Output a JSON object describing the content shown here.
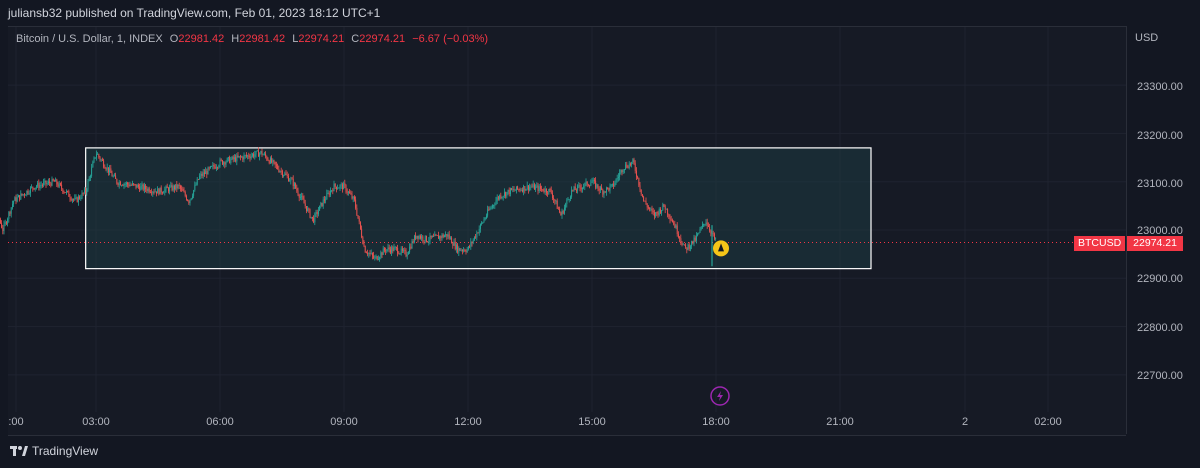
{
  "header": {
    "publisher_text": "juliansb32 published on TradingView.com, Feb 01, 2023 18:12 UTC+1"
  },
  "legend": {
    "symbol": "Bitcoin / U.S. Dollar, 1, INDEX",
    "o_label": "O",
    "o": "22981.42",
    "h_label": "H",
    "h": "22981.42",
    "l_label": "L",
    "l": "22974.21",
    "c_label": "C",
    "c": "22974.21",
    "change": "−6.67 (−0.03%)"
  },
  "y_axis": {
    "currency": "USD",
    "ticks": [
      "23300.00",
      "23200.00",
      "23100.00",
      "23000.00",
      "22900.00",
      "22800.00",
      "22700.00"
    ]
  },
  "x_axis": {
    "ticks": [
      ":00",
      "03:00",
      "06:00",
      "09:00",
      "12:00",
      "15:00",
      "18:00",
      "21:00",
      "2",
      "02:00"
    ]
  },
  "price_tag": {
    "symbol": "BTCUSD",
    "value": "22974.21"
  },
  "footer": {
    "brand": "TradingView"
  },
  "colors": {
    "up": "#26a69a",
    "down": "#ef5350",
    "last_price": "#f23645",
    "box_border": "#ffffff",
    "box_fill": "#1e3a42",
    "alert": "#f5c518",
    "flash_icon": "#9c27b0"
  },
  "icons": {
    "alert": "alert-bell-icon",
    "flash": "lightning-icon",
    "brand": "tradingview-logo-icon"
  },
  "chart_data": {
    "type": "candlestick",
    "title": "Bitcoin / U.S. Dollar, 1, INDEX",
    "ylabel": "USD",
    "ylim": [
      22640,
      23380
    ],
    "x_ticks": [
      "03:00",
      "06:00",
      "09:00",
      "12:00",
      "15:00",
      "18:00",
      "21:00",
      "2",
      "02:00"
    ],
    "last_price": 22974.21,
    "rectangle": {
      "price_top": 23170,
      "price_bottom": 22920,
      "time_start": "02:45",
      "time_end": "21:45"
    },
    "series": [
      {
        "name": "BTCUSD",
        "close_path": [
          [
            "00:00",
            23150
          ],
          [
            "00:15",
            23130
          ],
          [
            "00:30",
            23060
          ],
          [
            "00:45",
            23000
          ],
          [
            "01:00",
            23060
          ],
          [
            "01:30",
            23090
          ],
          [
            "02:00",
            23100
          ],
          [
            "02:30",
            23060
          ],
          [
            "02:45",
            23080
          ],
          [
            "03:00",
            23160
          ],
          [
            "03:30",
            23100
          ],
          [
            "04:00",
            23090
          ],
          [
            "04:30",
            23080
          ],
          [
            "05:00",
            23090
          ],
          [
            "05:15",
            23060
          ],
          [
            "05:30",
            23110
          ],
          [
            "06:00",
            23140
          ],
          [
            "06:30",
            23150
          ],
          [
            "07:00",
            23160
          ],
          [
            "07:30",
            23120
          ],
          [
            "07:45",
            23100
          ],
          [
            "08:00",
            23060
          ],
          [
            "08:15",
            23020
          ],
          [
            "08:30",
            23060
          ],
          [
            "08:45",
            23090
          ],
          [
            "09:00",
            23090
          ],
          [
            "09:15",
            23060
          ],
          [
            "09:30",
            22960
          ],
          [
            "09:45",
            22940
          ],
          [
            "10:00",
            22960
          ],
          [
            "10:15",
            22960
          ],
          [
            "10:30",
            22950
          ],
          [
            "10:45",
            22990
          ],
          [
            "11:00",
            22980
          ],
          [
            "11:30",
            22990
          ],
          [
            "11:45",
            22960
          ],
          [
            "12:00",
            22960
          ],
          [
            "12:15",
            23000
          ],
          [
            "12:30",
            23040
          ],
          [
            "12:45",
            23070
          ],
          [
            "13:00",
            23080
          ],
          [
            "13:30",
            23090
          ],
          [
            "14:00",
            23080
          ],
          [
            "14:15",
            23030
          ],
          [
            "14:30",
            23080
          ],
          [
            "15:00",
            23100
          ],
          [
            "15:15",
            23080
          ],
          [
            "15:30",
            23090
          ],
          [
            "15:45",
            23130
          ],
          [
            "16:00",
            23140
          ],
          [
            "16:15",
            23060
          ],
          [
            "16:30",
            23030
          ],
          [
            "16:45",
            23050
          ],
          [
            "17:00",
            23010
          ],
          [
            "17:15",
            22960
          ],
          [
            "17:30",
            22980
          ],
          [
            "17:45",
            23020
          ],
          [
            "18:00",
            22975
          ]
        ]
      }
    ]
  }
}
